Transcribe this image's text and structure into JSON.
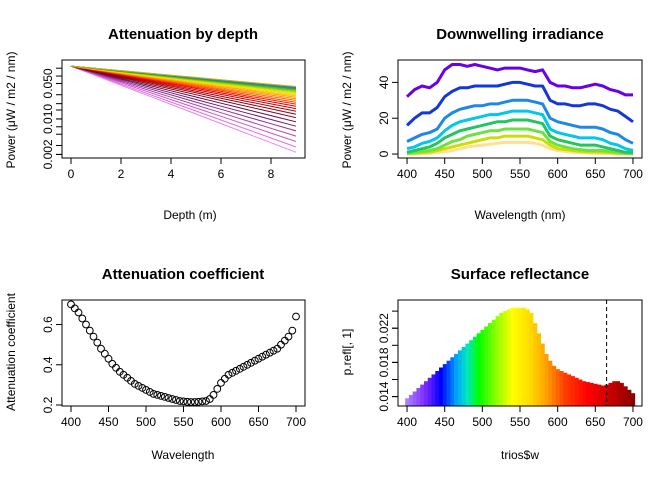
{
  "chart_data": [
    {
      "type": "line",
      "title": "Attenuation by depth",
      "xlabel": "Depth (m)",
      "ylabel": "Power (μW / m2 / nm)",
      "y_scale": "log",
      "xlim": [
        0,
        9
      ],
      "ylim": [
        0.002,
        0.15
      ],
      "x_ticks": [
        "0",
        "2",
        "4",
        "6",
        "8"
      ],
      "y_ticks": [
        "0.002",
        "0.010",
        "0.050"
      ],
      "x": [
        0,
        1,
        2,
        3,
        4,
        5,
        6,
        7,
        8,
        9
      ],
      "start_value": 0.11,
      "end_values": [
        0.0022,
        0.0028,
        0.0036,
        0.0046,
        0.0058,
        0.0072,
        0.0088,
        0.0106,
        0.0124,
        0.0142,
        0.016,
        0.0178,
        0.0196,
        0.0214,
        0.0232,
        0.025,
        0.0268,
        0.0284,
        0.03,
        0.0316,
        0.0332,
        0.0348,
        0.0364,
        0.038,
        0.0392,
        0.0404,
        0.0414,
        0.0422,
        0.043,
        0.0436
      ],
      "line_colors": [
        "#ee82ee",
        "#e070e0",
        "#cc55cc",
        "#b040b0",
        "#902a90",
        "#701870",
        "#600a40",
        "#800020",
        "#990010",
        "#b00008",
        "#cc0000",
        "#e00000",
        "#ff1a00",
        "#ff4400",
        "#ff6a00",
        "#ff8c00",
        "#ffa500",
        "#ffc000",
        "#ffd700",
        "#e6e600",
        "#c8e000",
        "#a0d000",
        "#70c000",
        "#40b040",
        "#20a070",
        "#1890a0",
        "#2080c0",
        "#3070d0",
        "#80a000",
        "#c8b400"
      ]
    },
    {
      "type": "line",
      "title": "Downwelling irradiance",
      "xlabel": "Wavelength (nm)",
      "ylabel": "Power (μW / m2 / nm)",
      "xlim": [
        400,
        700
      ],
      "ylim": [
        0,
        52
      ],
      "x_ticks": [
        "400",
        "450",
        "500",
        "550",
        "600",
        "650",
        "700"
      ],
      "y_ticks": [
        "0",
        "20",
        "40"
      ],
      "x": [
        400,
        410,
        420,
        430,
        440,
        450,
        460,
        470,
        480,
        490,
        500,
        510,
        520,
        530,
        540,
        550,
        560,
        570,
        580,
        590,
        600,
        610,
        620,
        630,
        640,
        650,
        660,
        670,
        680,
        690,
        700
      ],
      "series": [
        {
          "color": "#6a00e8",
          "values": [
            32,
            36,
            38,
            37,
            40,
            47,
            50,
            50,
            49,
            50,
            49,
            48,
            47,
            48,
            48,
            48,
            47,
            46,
            47,
            40,
            38,
            38,
            37,
            37,
            38,
            39,
            38,
            36,
            35,
            33,
            33
          ]
        },
        {
          "color": "#1438d8",
          "values": [
            16,
            20,
            23,
            23,
            26,
            32,
            35,
            37,
            37,
            38,
            38,
            38,
            38,
            39,
            40,
            40,
            39,
            38,
            38,
            30,
            28,
            28,
            27,
            27,
            28,
            28,
            27,
            25,
            24,
            21,
            18
          ]
        },
        {
          "color": "#1e88e5",
          "values": [
            7,
            9,
            11,
            12,
            14,
            20,
            23,
            25,
            26,
            27,
            27,
            28,
            28,
            29,
            30,
            30,
            30,
            29,
            28,
            20,
            18,
            17,
            16,
            15,
            15,
            15,
            14,
            12,
            11,
            8,
            6
          ]
        },
        {
          "color": "#00c8e8",
          "values": [
            3,
            4,
            6,
            7,
            9,
            13,
            16,
            18,
            19,
            20,
            21,
            22,
            22,
            23,
            24,
            24,
            24,
            23,
            22,
            14,
            12,
            11,
            10,
            9,
            9,
            9,
            8,
            6,
            5,
            3,
            2
          ]
        },
        {
          "color": "#22c55e",
          "values": [
            1,
            2,
            3,
            4,
            6,
            9,
            11,
            13,
            14,
            15,
            16,
            17,
            18,
            18,
            19,
            19,
            19,
            18,
            17,
            10,
            8,
            7,
            6,
            5,
            5,
            5,
            4,
            3,
            2,
            1,
            1
          ]
        },
        {
          "color": "#6ee040",
          "values": [
            0.5,
            1,
            1.5,
            2,
            3,
            5,
            7,
            8,
            10,
            11,
            12,
            13,
            13,
            14,
            14,
            14,
            14,
            13,
            12,
            7,
            5,
            4,
            3,
            2.5,
            2,
            2,
            2,
            1.5,
            1,
            0.5,
            0.3
          ]
        },
        {
          "color": "#c8e000",
          "values": [
            0.3,
            0.5,
            0.8,
            1,
            2,
            3,
            4,
            5,
            6,
            7,
            8,
            9,
            9,
            10,
            10,
            10,
            10,
            9,
            8,
            5,
            3,
            2.5,
            2,
            1.5,
            1.2,
            1,
            1,
            0.8,
            0.5,
            0.3,
            0.2
          ]
        },
        {
          "color": "#ffe090",
          "values": [
            0.1,
            0.2,
            0.3,
            0.5,
            0.8,
            1.2,
            2,
            3,
            4,
            4.5,
            5,
            5.5,
            6,
            6.5,
            6.5,
            6.5,
            6.5,
            6,
            5,
            3,
            2,
            1.5,
            1,
            0.8,
            0.6,
            0.5,
            0.4,
            0.3,
            0.2,
            0.1,
            0.05
          ]
        }
      ]
    },
    {
      "type": "scatter",
      "title": "Attenuation coefficient",
      "xlabel": "Wavelength",
      "ylabel": "Attenuation coefficient",
      "xlim": [
        400,
        700
      ],
      "ylim": [
        0.2,
        0.72
      ],
      "x_ticks": [
        "400",
        "450",
        "500",
        "550",
        "600",
        "650",
        "700"
      ],
      "y_ticks": [
        "0.2",
        "0.4",
        "0.6"
      ],
      "x": [
        400,
        405,
        410,
        415,
        420,
        425,
        430,
        435,
        440,
        445,
        450,
        455,
        460,
        465,
        470,
        475,
        480,
        485,
        490,
        495,
        500,
        505,
        510,
        515,
        520,
        525,
        530,
        535,
        540,
        545,
        550,
        555,
        560,
        565,
        570,
        575,
        580,
        585,
        590,
        595,
        600,
        605,
        610,
        615,
        620,
        625,
        630,
        635,
        640,
        645,
        650,
        655,
        660,
        665,
        670,
        675,
        680,
        685,
        690,
        695,
        700
      ],
      "y": [
        0.7,
        0.68,
        0.66,
        0.63,
        0.6,
        0.57,
        0.54,
        0.51,
        0.48,
        0.455,
        0.43,
        0.405,
        0.385,
        0.365,
        0.35,
        0.335,
        0.32,
        0.305,
        0.295,
        0.285,
        0.275,
        0.265,
        0.255,
        0.25,
        0.245,
        0.24,
        0.235,
        0.23,
        0.225,
        0.22,
        0.218,
        0.216,
        0.215,
        0.215,
        0.216,
        0.218,
        0.22,
        0.23,
        0.25,
        0.28,
        0.31,
        0.33,
        0.35,
        0.36,
        0.37,
        0.38,
        0.39,
        0.4,
        0.41,
        0.42,
        0.43,
        0.44,
        0.45,
        0.46,
        0.47,
        0.48,
        0.5,
        0.52,
        0.54,
        0.57,
        0.64
      ]
    },
    {
      "type": "bar",
      "title": "Surface reflectance",
      "xlabel": "trios$w",
      "ylabel": "p.refl[, 1]",
      "xlim": [
        400,
        700
      ],
      "ylim": [
        0.012,
        0.026
      ],
      "x_ticks": [
        "400",
        "450",
        "500",
        "550",
        "600",
        "650",
        "700"
      ],
      "y_ticks": [
        "0.014",
        "0.018",
        "0.022"
      ],
      "vline": 665,
      "x": [
        400,
        405,
        410,
        415,
        420,
        425,
        430,
        435,
        440,
        445,
        450,
        455,
        460,
        465,
        470,
        475,
        480,
        485,
        490,
        495,
        500,
        505,
        510,
        515,
        520,
        525,
        530,
        535,
        540,
        545,
        550,
        555,
        560,
        565,
        570,
        575,
        580,
        585,
        590,
        595,
        600,
        605,
        610,
        615,
        620,
        625,
        630,
        635,
        640,
        645,
        650,
        655,
        660,
        665,
        670,
        675,
        680,
        685,
        690,
        695,
        700
      ],
      "values": [
        0.0138,
        0.0142,
        0.0146,
        0.015,
        0.0154,
        0.0158,
        0.0162,
        0.0166,
        0.017,
        0.0174,
        0.0178,
        0.0182,
        0.0186,
        0.019,
        0.0194,
        0.0198,
        0.0202,
        0.0206,
        0.021,
        0.0214,
        0.0218,
        0.0222,
        0.0226,
        0.023,
        0.0234,
        0.0238,
        0.024,
        0.0242,
        0.0244,
        0.0244,
        0.0244,
        0.0244,
        0.0242,
        0.0238,
        0.0226,
        0.0214,
        0.0202,
        0.019,
        0.0182,
        0.0176,
        0.0172,
        0.017,
        0.0168,
        0.0166,
        0.0164,
        0.0162,
        0.016,
        0.0158,
        0.0157,
        0.0156,
        0.0155,
        0.0154,
        0.0153,
        0.0154,
        0.0156,
        0.0158,
        0.0158,
        0.0156,
        0.0152,
        0.0148,
        0.0144
      ]
    }
  ]
}
